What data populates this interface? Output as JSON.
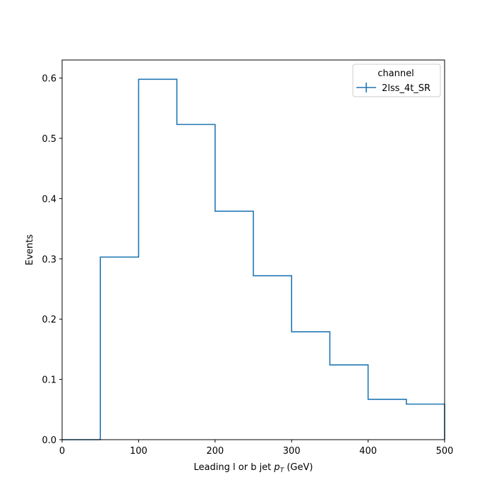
{
  "chart_data": {
    "type": "histogram-step",
    "xlabel": "Leading l or b jet",
    "xlabel_pt": "p",
    "xlabel_sub": "T",
    "xlabel_unit": "(GeV)",
    "ylabel": "Events",
    "xlim": [
      0,
      500
    ],
    "ylim": [
      0,
      0.63
    ],
    "xticks": [
      0,
      100,
      200,
      300,
      400,
      500
    ],
    "xtick_labels": [
      "0",
      "100",
      "200",
      "300",
      "400",
      "500"
    ],
    "yticks": [
      0.0,
      0.1,
      0.2,
      0.3,
      0.4,
      0.5,
      0.6
    ],
    "ytick_labels": [
      "0.0",
      "0.1",
      "0.2",
      "0.3",
      "0.4",
      "0.5",
      "0.6"
    ],
    "bin_edges": [
      0,
      50,
      100,
      150,
      200,
      250,
      300,
      350,
      400,
      450,
      500
    ],
    "series": [
      {
        "name": "2lss_4t_SR",
        "color": "#1f77b4",
        "values": [
          0.0,
          0.303,
          0.598,
          0.523,
          0.379,
          0.272,
          0.179,
          0.124,
          0.067,
          0.059
        ]
      }
    ],
    "legend": {
      "title": "channel",
      "placement": "top-right"
    },
    "grid": false
  }
}
